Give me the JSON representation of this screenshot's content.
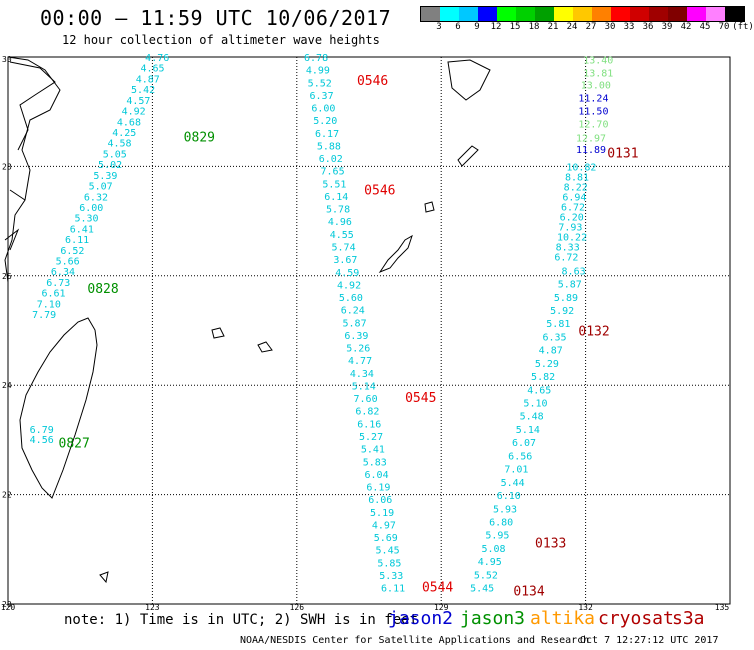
{
  "title": "00:00 – 11:59 UTC 10/06/2017",
  "subtitle": "12 hour collection of altimeter wave heights",
  "colorbar": {
    "colors": [
      "#808080",
      "#00ffff",
      "#00c8ff",
      "#0000ff",
      "#00ff00",
      "#00d000",
      "#00a000",
      "#ffff00",
      "#ffc800",
      "#ff8000",
      "#ff0000",
      "#d00000",
      "#a00000",
      "#800000",
      "#ff00ff",
      "#ff80ff",
      "#000000"
    ],
    "labels": [
      "3",
      "6",
      "9",
      "12",
      "15",
      "18",
      "21",
      "24",
      "27",
      "30",
      "33",
      "36",
      "39",
      "42",
      "45",
      "70",
      "(ft)"
    ]
  },
  "axes": {
    "x_ticks": [
      "120",
      "123",
      "126",
      "129",
      "132",
      "135"
    ],
    "y_ticks": [
      "30",
      "28",
      "26",
      "24",
      "22",
      "20"
    ]
  },
  "note": "note: 1) Time is in UTC; 2) SWH is in feet",
  "legend": [
    {
      "name": "jason2",
      "color": "#0000d0"
    },
    {
      "name": "jason3",
      "color": "#009000"
    },
    {
      "name": "altika",
      "color": "#ff9900"
    },
    {
      "name": "cryosat",
      "color": "#b00000"
    },
    {
      "name": "s3a",
      "color": "#b00000"
    }
  ],
  "footer": "NOAA/NESDIS Center for Satellite Applications and Research",
  "timestamp": "Oct  7 12:27:12 UTC 2017",
  "tracks": [
    {
      "name": "jason3 track A",
      "color": "#00c8d8",
      "start": {
        "lon": 122.85,
        "lat": 30.0
      },
      "end": {
        "lon": 120.5,
        "lat": 25.3
      },
      "values": [
        "4.76",
        "4.65",
        "4.87",
        "5.42",
        "4.57",
        "4.92",
        "4.68",
        "4.25",
        "4.58",
        "5.05",
        "5.02",
        "5.39",
        "5.07",
        "6.32",
        "6.00",
        "5.30",
        "6.41",
        "6.11",
        "6.52",
        "5.66",
        "6.34",
        "6.73",
        "6.61",
        "7.10",
        "7.79"
      ]
    },
    {
      "name": "jason3 track B",
      "color": "#00c8d8",
      "start": {
        "lon": 120.45,
        "lat": 23.2
      },
      "end": {
        "lon": 120.45,
        "lat": 23.02
      },
      "values": [
        "6.79",
        "4.56"
      ]
    },
    {
      "name": "cryosat track",
      "color": "#00c8d8",
      "start": {
        "lon": 126.15,
        "lat": 30.0
      },
      "end": {
        "lon": 127.75,
        "lat": 20.3
      },
      "values": [
        "6.78",
        "4.99",
        "5.52",
        "6.37",
        "6.00",
        "5.20",
        "6.17",
        "5.88",
        "6.02",
        "7.65",
        "5.51",
        "6.14",
        "5.78",
        "4.96",
        "4.55",
        "5.74",
        "3.67",
        "4.59",
        "4.92",
        "5.60",
        "6.24",
        "5.87",
        "6.39",
        "5.26",
        "4.77",
        "4.34",
        "5.14",
        "7.60",
        "6.82",
        "6.16",
        "5.27",
        "5.41",
        "5.83",
        "6.04",
        "6.19",
        "6.06",
        "5.19",
        "4.97",
        "5.69",
        "5.45",
        "5.85",
        "5.33",
        "6.11"
      ]
    },
    {
      "name": "cryosat track east",
      "color": "#00c8d8",
      "start": {
        "lon": 131.5,
        "lat": 26.1
      },
      "end": {
        "lon": 129.6,
        "lat": 20.3
      },
      "values": [
        "8.63",
        "5.87",
        "5.89",
        "5.92",
        "5.81",
        "6.35",
        "4.87",
        "5.29",
        "5.82",
        "4.65",
        "5.10",
        "5.48",
        "5.14",
        "6.07",
        "6.56",
        "7.01",
        "5.44",
        "6.10",
        "5.93",
        "6.80",
        "5.95",
        "5.08",
        "4.95",
        "5.52",
        "5.45"
      ]
    },
    {
      "name": "s3a track upper",
      "color": "#00c8d8",
      "start": {
        "lon": 131.6,
        "lat": 28.0
      },
      "end": {
        "lon": 131.35,
        "lat": 26.35
      },
      "values": [
        "10.82",
        "8.81",
        "8.22",
        "6.94",
        "6.72",
        "6.20",
        "7.93",
        "10.22",
        "8.33",
        "6.72"
      ]
    }
  ],
  "extra_labels": [
    {
      "text": "13.40",
      "color": "#80e080",
      "lon": 131.95,
      "lat": 29.95
    },
    {
      "text": "13.81",
      "color": "#80e080",
      "lon": 131.95,
      "lat": 29.72
    },
    {
      "text": "13.00",
      "color": "#80e080",
      "lon": 131.9,
      "lat": 29.5
    },
    {
      "text": "11.24",
      "color": "#0000d0",
      "lon": 131.85,
      "lat": 29.26
    },
    {
      "text": "11.50",
      "color": "#0000d0",
      "lon": 131.85,
      "lat": 29.02
    },
    {
      "text": "12.70",
      "color": "#80e080",
      "lon": 131.85,
      "lat": 28.78
    },
    {
      "text": "12.97",
      "color": "#80e080",
      "lon": 131.8,
      "lat": 28.53
    },
    {
      "text": "11.89",
      "color": "#0000d0",
      "lon": 131.8,
      "lat": 28.32
    }
  ],
  "time_labels": [
    {
      "text": "0546",
      "color": "#e00000",
      "lon": 127.25,
      "lat": 29.58
    },
    {
      "text": "0829",
      "color": "#009000",
      "lon": 123.65,
      "lat": 28.55
    },
    {
      "text": "0131",
      "color": "#a00000",
      "lon": 132.45,
      "lat": 28.25
    },
    {
      "text": "0546",
      "color": "#e00000",
      "lon": 127.4,
      "lat": 27.58
    },
    {
      "text": "0828",
      "color": "#009000",
      "lon": 121.65,
      "lat": 25.78
    },
    {
      "text": "0132",
      "color": "#a00000",
      "lon": 131.85,
      "lat": 25.0
    },
    {
      "text": "0545",
      "color": "#e00000",
      "lon": 128.25,
      "lat": 23.78
    },
    {
      "text": "0827",
      "color": "#009000",
      "lon": 121.05,
      "lat": 22.95
    },
    {
      "text": "0133",
      "color": "#a00000",
      "lon": 130.95,
      "lat": 21.12
    },
    {
      "text": "0544",
      "color": "#e00000",
      "lon": 128.6,
      "lat": 20.32
    },
    {
      "text": "0134",
      "color": "#a00000",
      "lon": 130.5,
      "lat": 20.25
    }
  ]
}
